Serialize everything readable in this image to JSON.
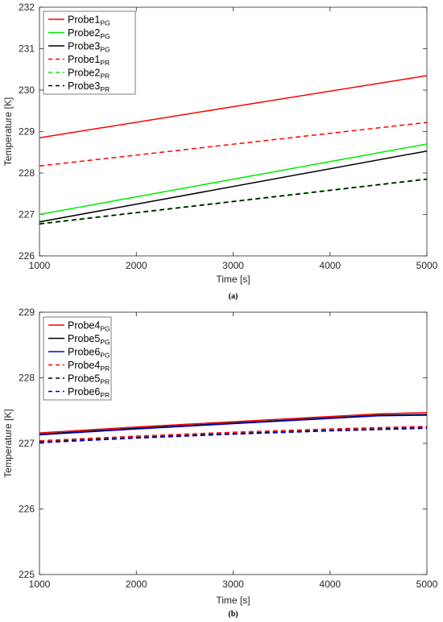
{
  "chart_data": [
    {
      "type": "line",
      "caption": "(a)",
      "xlabel": "Time [s]",
      "ylabel": "Temperature [K]",
      "xlim": [
        1000,
        5000
      ],
      "ylim": [
        226,
        232
      ],
      "xticks": [
        1000,
        2000,
        3000,
        4000,
        5000
      ],
      "yticks": [
        226,
        227,
        228,
        229,
        230,
        231,
        232
      ],
      "grid": false,
      "legend_position": "top-left",
      "series": [
        {
          "name": "Probe1",
          "sub": "PG",
          "color": "#ff0000",
          "dash": "solid",
          "x": [
            1000,
            5000
          ],
          "y": [
            228.85,
            230.35
          ]
        },
        {
          "name": "Probe2",
          "sub": "PG",
          "color": "#00ee00",
          "dash": "solid",
          "x": [
            1000,
            5000
          ],
          "y": [
            227.0,
            228.7
          ]
        },
        {
          "name": "Probe3",
          "sub": "PG",
          "color": "#000000",
          "dash": "solid",
          "x": [
            1000,
            5000
          ],
          "y": [
            226.82,
            228.53
          ]
        },
        {
          "name": "Probe1",
          "sub": "PR",
          "color": "#ff0000",
          "dash": "dashed",
          "x": [
            1000,
            5000
          ],
          "y": [
            228.17,
            229.22
          ]
        },
        {
          "name": "Probe2",
          "sub": "PR",
          "color": "#00ee00",
          "dash": "dashed",
          "x": [
            1000,
            5000
          ],
          "y": [
            226.78,
            227.86
          ]
        },
        {
          "name": "Probe3",
          "sub": "PR",
          "color": "#000000",
          "dash": "dashed",
          "x": [
            1000,
            5000
          ],
          "y": [
            226.77,
            227.85
          ]
        }
      ]
    },
    {
      "type": "line",
      "caption": "(b)",
      "xlabel": "Time [s]",
      "ylabel": "Temperature [K]",
      "xlim": [
        1000,
        5000
      ],
      "ylim": [
        225,
        229
      ],
      "xticks": [
        1000,
        2000,
        3000,
        4000,
        5000
      ],
      "yticks": [
        225,
        226,
        227,
        228,
        229
      ],
      "grid": false,
      "legend_position": "top-left",
      "series": [
        {
          "name": "Probe4",
          "sub": "PG",
          "color": "#ff0000",
          "dash": "solid",
          "x": [
            1000,
            2000,
            3000,
            4000,
            4500,
            5000
          ],
          "y": [
            227.16,
            227.25,
            227.33,
            227.41,
            227.45,
            227.47
          ]
        },
        {
          "name": "Probe5",
          "sub": "PG",
          "color": "#000000",
          "dash": "solid",
          "x": [
            1000,
            2000,
            3000,
            4000,
            4500,
            5000
          ],
          "y": [
            227.14,
            227.23,
            227.31,
            227.39,
            227.43,
            227.44
          ]
        },
        {
          "name": "Probe6",
          "sub": "PG",
          "color": "#0000cc",
          "dash": "solid",
          "x": [
            1000,
            2000,
            3000,
            4000,
            4500,
            5000
          ],
          "y": [
            227.13,
            227.22,
            227.3,
            227.38,
            227.42,
            227.43
          ]
        },
        {
          "name": "Probe4",
          "sub": "PR",
          "color": "#ff0000",
          "dash": "dashed",
          "x": [
            1000,
            2000,
            3000,
            4000,
            5000
          ],
          "y": [
            227.04,
            227.11,
            227.17,
            227.22,
            227.26
          ]
        },
        {
          "name": "Probe5",
          "sub": "PR",
          "color": "#000000",
          "dash": "dashed",
          "x": [
            1000,
            2000,
            3000,
            4000,
            5000
          ],
          "y": [
            227.02,
            227.09,
            227.15,
            227.2,
            227.24
          ]
        },
        {
          "name": "Probe6",
          "sub": "PR",
          "color": "#0000cc",
          "dash": "dashed",
          "x": [
            1000,
            2000,
            3000,
            4000,
            5000
          ],
          "y": [
            227.01,
            227.08,
            227.14,
            227.19,
            227.23
          ]
        }
      ]
    }
  ]
}
